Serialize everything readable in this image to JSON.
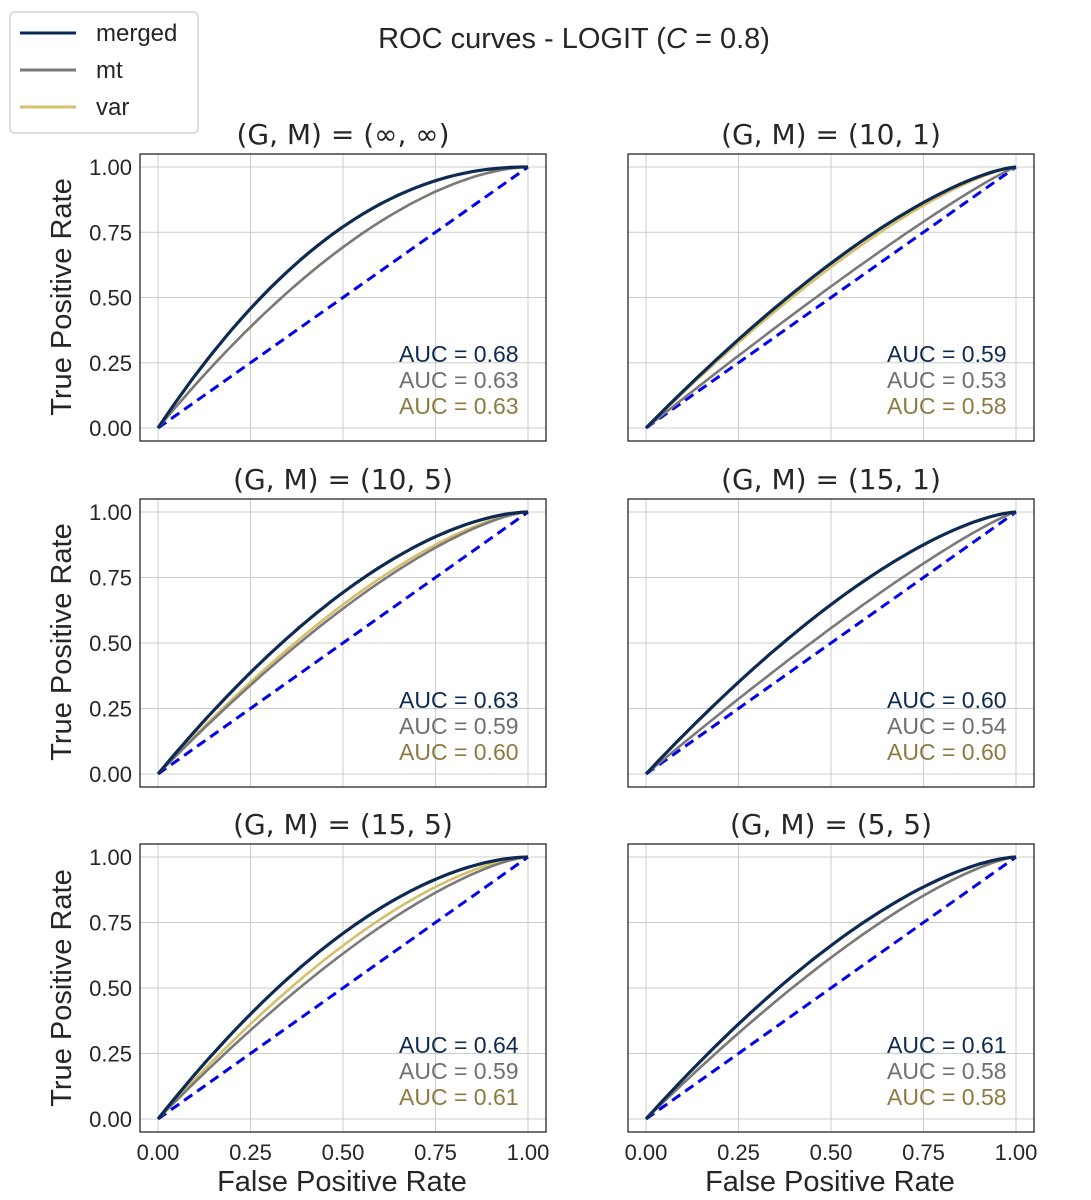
{
  "figure": {
    "title": "ROC curves - LOGIT (",
    "title_var": "C",
    "title_rest": " = 0.8)",
    "xlabel": "False Positive Rate",
    "ylabel": "True Positive Rate"
  },
  "legend": [
    {
      "name": "merged",
      "color": "#0c2a52"
    },
    {
      "name": "mt",
      "color": "#7b7979"
    },
    {
      "name": "var",
      "color": "#d4bf6a"
    }
  ],
  "auc_colors": [
    "#0c2a52",
    "#6f6f6f",
    "#8e7a40"
  ],
  "chart_data": [
    {
      "type": "line",
      "title": "(G, M) = (∞, ∞)",
      "xlim": [
        0,
        1
      ],
      "ylim": [
        0,
        1
      ],
      "series": [
        {
          "name": "merged",
          "auc": 0.68,
          "auc_label": "AUC = 0.68"
        },
        {
          "name": "mt",
          "auc": 0.63,
          "auc_label": "AUC = 0.63"
        },
        {
          "name": "var",
          "auc": 0.63,
          "auc_label": "AUC = 0.63"
        }
      ]
    },
    {
      "type": "line",
      "title": "(G, M) = (10, 1)",
      "xlim": [
        0,
        1
      ],
      "ylim": [
        0,
        1
      ],
      "series": [
        {
          "name": "merged",
          "auc": 0.59,
          "auc_label": "AUC = 0.59"
        },
        {
          "name": "mt",
          "auc": 0.53,
          "auc_label": "AUC = 0.53"
        },
        {
          "name": "var",
          "auc": 0.58,
          "auc_label": "AUC = 0.58"
        }
      ]
    },
    {
      "type": "line",
      "title": "(G, M) = (10, 5)",
      "xlim": [
        0,
        1
      ],
      "ylim": [
        0,
        1
      ],
      "series": [
        {
          "name": "merged",
          "auc": 0.63,
          "auc_label": "AUC = 0.63"
        },
        {
          "name": "mt",
          "auc": 0.59,
          "auc_label": "AUC = 0.59"
        },
        {
          "name": "var",
          "auc": 0.6,
          "auc_label": "AUC = 0.60"
        }
      ]
    },
    {
      "type": "line",
      "title": "(G, M) = (15, 1)",
      "xlim": [
        0,
        1
      ],
      "ylim": [
        0,
        1
      ],
      "series": [
        {
          "name": "merged",
          "auc": 0.6,
          "auc_label": "AUC = 0.60"
        },
        {
          "name": "mt",
          "auc": 0.54,
          "auc_label": "AUC = 0.54"
        },
        {
          "name": "var",
          "auc": 0.6,
          "auc_label": "AUC = 0.60"
        }
      ]
    },
    {
      "type": "line",
      "title": "(G, M) = (15, 5)",
      "xlim": [
        0,
        1
      ],
      "ylim": [
        0,
        1
      ],
      "series": [
        {
          "name": "merged",
          "auc": 0.64,
          "auc_label": "AUC = 0.64"
        },
        {
          "name": "mt",
          "auc": 0.59,
          "auc_label": "AUC = 0.59"
        },
        {
          "name": "var",
          "auc": 0.61,
          "auc_label": "AUC = 0.61"
        }
      ]
    },
    {
      "type": "line",
      "title": "(G, M) = (5, 5)",
      "xlim": [
        0,
        1
      ],
      "ylim": [
        0,
        1
      ],
      "series": [
        {
          "name": "merged",
          "auc": 0.61,
          "auc_label": "AUC = 0.61"
        },
        {
          "name": "mt",
          "auc": 0.58,
          "auc_label": "AUC = 0.58"
        },
        {
          "name": "var",
          "auc": 0.58,
          "auc_label": "AUC = 0.58"
        }
      ]
    }
  ],
  "ticks": [
    "0.00",
    "0.25",
    "0.50",
    "0.75",
    "1.00"
  ],
  "tick_values": [
    0,
    0.25,
    0.5,
    0.75,
    1.0
  ],
  "diagonal_color": "#0000ee",
  "grid": true
}
